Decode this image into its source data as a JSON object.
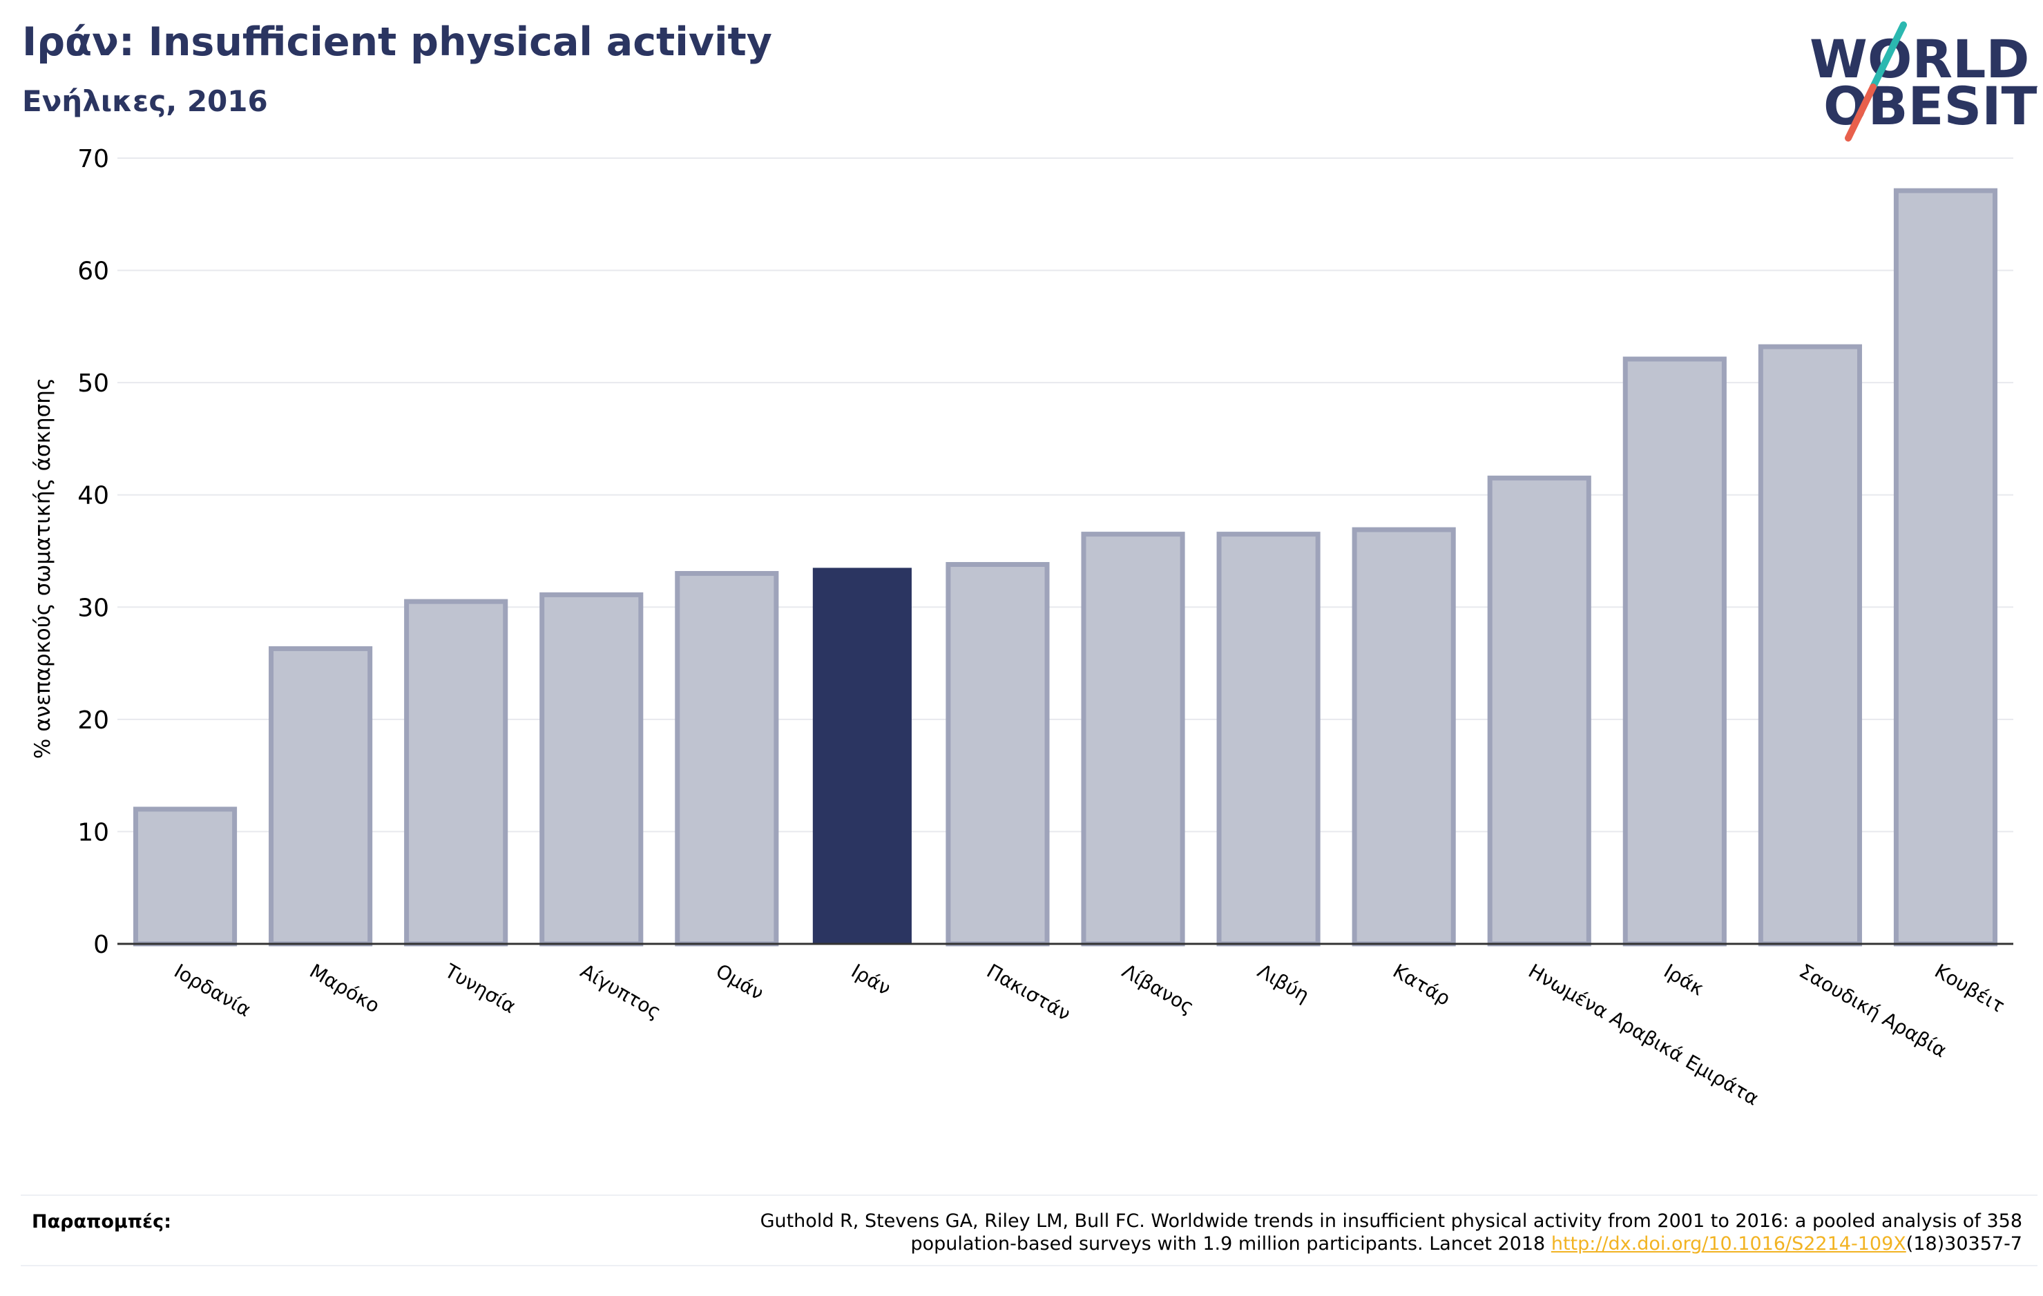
{
  "header": {
    "title": "Ιράν: Insufficient physical activity",
    "subtitle": "Ενήλικες, 2016"
  },
  "logo": {
    "line1": "WORLD",
    "line2": "OBESITY",
    "colors": {
      "text": "#2b3561",
      "slash_top": "#2bb8b0",
      "slash_bottom": "#e8604c"
    }
  },
  "chart_data": {
    "type": "bar",
    "title": "Ιράν: Insufficient physical activity",
    "subtitle": "Ενήλικες, 2016",
    "ylabel": "% ανεπαρκούς σωματικής άσκησης",
    "xlabel": "",
    "ylim": [
      0,
      70
    ],
    "yticks": [
      0,
      10,
      20,
      30,
      40,
      50,
      60,
      70
    ],
    "grid": true,
    "categories": [
      "Ιορδανία",
      "Μαρόκο",
      "Τυνησία",
      "Αίγυπτος",
      "Ομάν",
      "Ιράν",
      "Πακιστάν",
      "Λίβανος",
      "Λιβύη",
      "Κατάρ",
      "Ηνωμένα Αραβικά Εμιράτα",
      "Ιράκ",
      "Σαουδική Αραβία",
      "Κουβέιτ"
    ],
    "values": [
      12.0,
      26.3,
      30.5,
      31.1,
      33.0,
      33.5,
      33.8,
      36.5,
      36.5,
      36.9,
      41.5,
      52.1,
      53.2,
      67.1
    ],
    "highlight": "Ιράν",
    "colors": {
      "bar": "#bfc3d0",
      "bar_edge": "#9ea3ba",
      "highlight": "#2b3561",
      "grid": "#e8e9ee",
      "axis": "#333333"
    }
  },
  "footer": {
    "references_label": "Παραπομπές:",
    "reference_text_1": "Guthold R, Stevens GA, Riley LM, Bull FC. Worldwide trends in insufficient physical activity from 2001 to 2016: a pooled analysis of 358",
    "reference_text_2": "population-based surveys with 1.9 million participants. Lancet 2018 ",
    "reference_link": "http://dx.doi.org/10.1016/S2214-109X",
    "reference_tail": "(18)30357-7"
  }
}
